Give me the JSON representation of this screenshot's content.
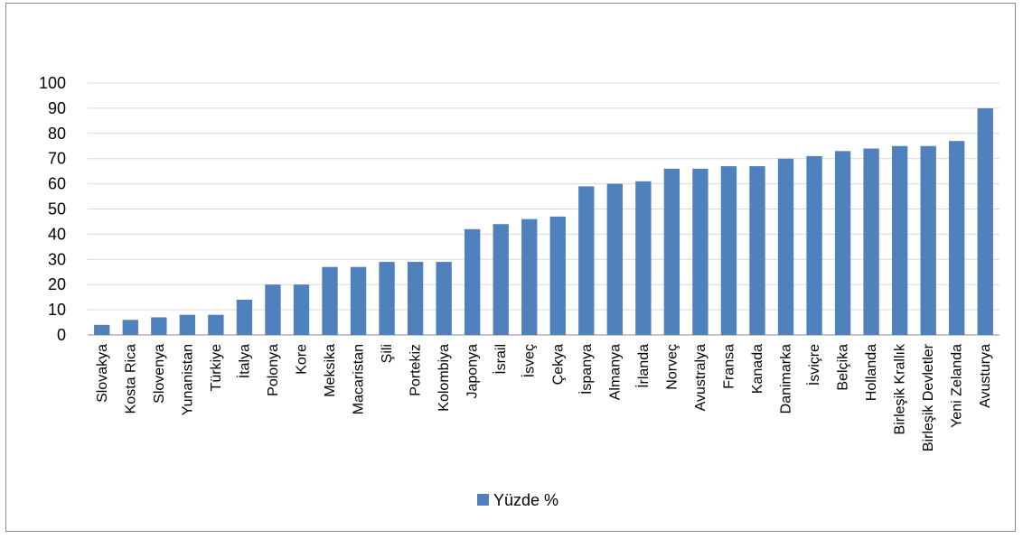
{
  "chart_data": {
    "type": "bar",
    "categories": [
      "Slovakya",
      "Kosta Rica",
      "Slovenya",
      "Yunanistan",
      "Türkiye",
      "İtalya",
      "Polonya",
      "Kore",
      "Meksika",
      "Macaristan",
      "Şili",
      "Portekiz",
      "Kolombiya",
      "Japonya",
      "İsrail",
      "İsveç",
      "Çekya",
      "İspanya",
      "Almanya",
      "İrlanda",
      "Norveç",
      "Avustralya",
      "Fransa",
      "Kanada",
      "Danimarka",
      "İsviçre",
      "Belçika",
      "Hollanda",
      "Birleşik Krallık",
      "Birleşik Devletler",
      "Yeni Zelanda",
      "Avusturya"
    ],
    "series": [
      {
        "name": "Yüzde %",
        "color": "#4f81bd",
        "values": [
          4,
          6,
          7,
          8,
          8,
          14,
          20,
          20,
          27,
          27,
          29,
          29,
          29,
          42,
          44,
          46,
          47,
          59,
          60,
          61,
          66,
          66,
          67,
          67,
          70,
          71,
          73,
          74,
          75,
          75,
          77,
          90
        ]
      }
    ],
    "ylim": [
      0,
      100
    ],
    "yticks": [
      0,
      10,
      20,
      30,
      40,
      50,
      60,
      70,
      80,
      90,
      100
    ],
    "grid": true,
    "legend": "bottom-center"
  }
}
